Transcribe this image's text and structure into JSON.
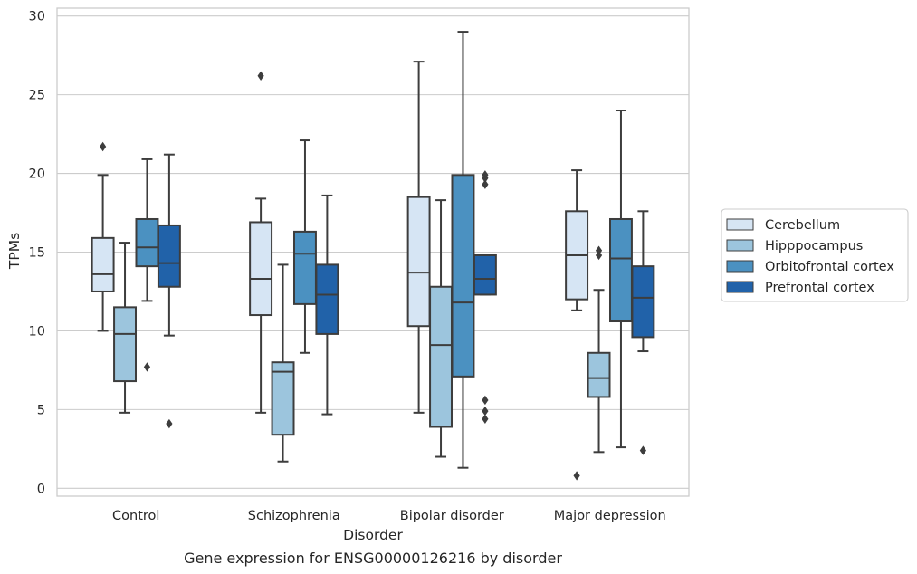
{
  "caption": "Gene expression for ENSG00000126216 by disorder",
  "chart_data": {
    "type": "box",
    "title": "",
    "xlabel": "Disorder",
    "ylabel": "TPMs",
    "ylim": [
      -0.5,
      30.5
    ],
    "yticks": [
      0,
      5,
      10,
      15,
      20,
      25,
      30
    ],
    "grid": "horizontal",
    "legend_position": "right",
    "categories": [
      "Control",
      "Schizophrenia",
      "Bipolar disorder",
      "Major depression"
    ],
    "series": [
      {
        "name": "Cerebellum",
        "color": "#d6e5f4",
        "boxes": [
          {
            "whislo": 10.0,
            "q1": 12.5,
            "med": 13.6,
            "q3": 15.9,
            "whishi": 19.9,
            "fliers": [
              21.7
            ]
          },
          {
            "whislo": 4.8,
            "q1": 11.0,
            "med": 13.3,
            "q3": 16.9,
            "whishi": 18.4,
            "fliers": [
              26.2
            ]
          },
          {
            "whislo": 4.8,
            "q1": 10.3,
            "med": 13.7,
            "q3": 18.5,
            "whishi": 27.1,
            "fliers": []
          },
          {
            "whislo": 11.3,
            "q1": 12.0,
            "med": 14.8,
            "q3": 17.6,
            "whishi": 20.2,
            "fliers": [
              0.8
            ]
          }
        ]
      },
      {
        "name": "Hipppocampus",
        "color": "#9cc5dd",
        "boxes": [
          {
            "whislo": 4.8,
            "q1": 6.8,
            "med": 9.8,
            "q3": 11.5,
            "whishi": 15.6,
            "fliers": []
          },
          {
            "whislo": 1.7,
            "q1": 3.4,
            "med": 7.4,
            "q3": 8.0,
            "whishi": 14.2,
            "fliers": []
          },
          {
            "whislo": 2.0,
            "q1": 3.9,
            "med": 9.1,
            "q3": 12.8,
            "whishi": 18.3,
            "fliers": []
          },
          {
            "whislo": 2.3,
            "q1": 5.8,
            "med": 7.0,
            "q3": 8.6,
            "whishi": 12.6,
            "fliers": [
              14.8,
              15.1
            ]
          }
        ]
      },
      {
        "name": "Orbitofrontal cortex",
        "color": "#4b91c1",
        "boxes": [
          {
            "whislo": 11.9,
            "q1": 14.1,
            "med": 15.3,
            "q3": 17.1,
            "whishi": 20.9,
            "fliers": [
              7.7
            ]
          },
          {
            "whislo": 8.6,
            "q1": 11.7,
            "med": 14.9,
            "q3": 16.3,
            "whishi": 22.1,
            "fliers": []
          },
          {
            "whislo": 1.3,
            "q1": 7.1,
            "med": 11.8,
            "q3": 19.9,
            "whishi": 29.0,
            "fliers": []
          },
          {
            "whislo": 2.6,
            "q1": 10.6,
            "med": 14.6,
            "q3": 17.1,
            "whishi": 24.0,
            "fliers": []
          }
        ]
      },
      {
        "name": "Prefrontal cortex",
        "color": "#2162a9",
        "boxes": [
          {
            "whislo": 9.7,
            "q1": 12.8,
            "med": 14.3,
            "q3": 16.7,
            "whishi": 21.2,
            "fliers": [
              4.1
            ]
          },
          {
            "whislo": 4.7,
            "q1": 9.8,
            "med": 12.3,
            "q3": 14.2,
            "whishi": 18.6,
            "fliers": []
          },
          {
            "whislo": 12.3,
            "q1": 12.3,
            "med": 13.3,
            "q3": 14.8,
            "whishi": 14.8,
            "fliers": [
              4.4,
              4.9,
              5.6,
              19.3,
              19.7,
              19.9
            ]
          },
          {
            "whislo": 8.7,
            "q1": 9.6,
            "med": 12.1,
            "q3": 14.1,
            "whishi": 17.6,
            "fliers": [
              2.4
            ]
          }
        ]
      }
    ]
  }
}
